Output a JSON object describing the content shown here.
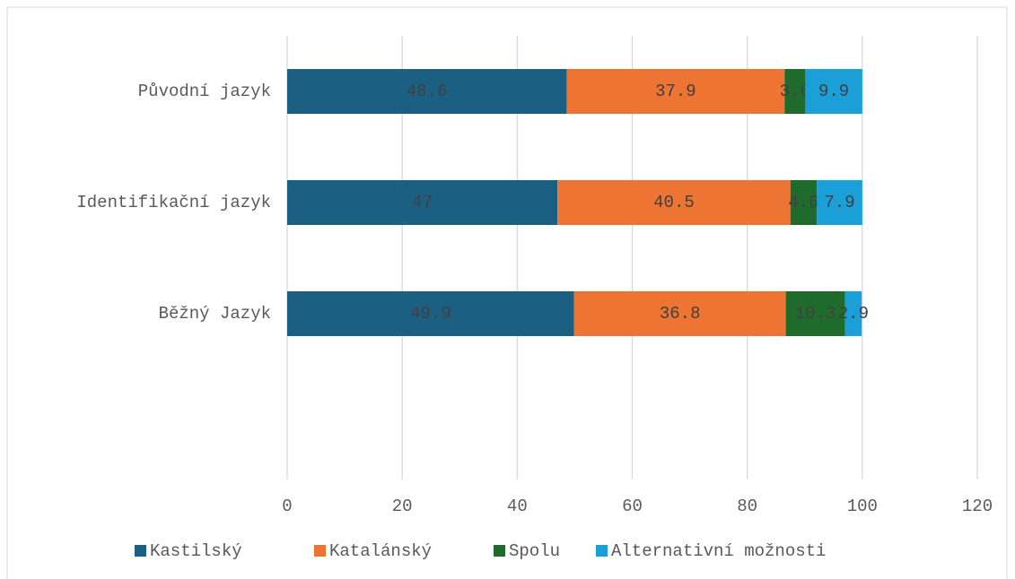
{
  "chart_data": {
    "type": "stacked-barh",
    "categories": [
      "Původní jazyk",
      "Identifikační jazyk",
      "Běžný Jazyk"
    ],
    "series": [
      {
        "name": "Kastilský",
        "color": "#1b5f83",
        "values": [
          48.6,
          47,
          49.9
        ]
      },
      {
        "name": "Katalánský",
        "color": "#ed7433",
        "values": [
          37.9,
          40.5,
          36.8
        ]
      },
      {
        "name": "Spolu",
        "color": "#1f6b2b",
        "values": [
          3.6,
          4.6,
          10.3
        ]
      },
      {
        "name": "Alternativní možnosti",
        "color": "#1a9fd9",
        "values": [
          9.9,
          7.9,
          2.9
        ]
      }
    ],
    "xlim": [
      0,
      120
    ],
    "xticks": [
      0,
      20,
      40,
      60,
      80,
      100,
      120
    ],
    "grid": true,
    "legend": "bottom"
  }
}
